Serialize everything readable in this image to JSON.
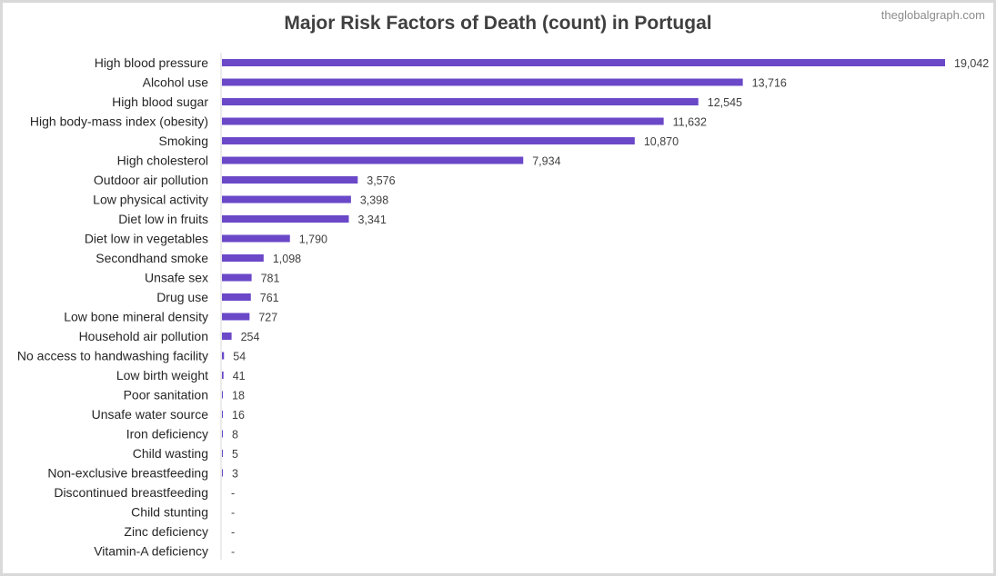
{
  "header": {
    "title": "Major Risk Factors of Death (count) in Portugal",
    "watermark": "theglobalgraph.com"
  },
  "chart_data": {
    "type": "bar",
    "orientation": "horizontal",
    "title": "Major Risk Factors of Death (count) in Portugal",
    "bar_color": "#6a48c8",
    "categories": [
      "High blood pressure",
      "Alcohol use",
      "High blood sugar",
      "High body-mass index (obesity)",
      "Smoking",
      "High cholesterol",
      "Outdoor air pollution",
      "Low physical activity",
      "Diet low in fruits",
      "Diet low in vegetables",
      "Secondhand smoke",
      "Unsafe sex",
      "Drug use",
      "Low bone mineral density",
      "Household air pollution",
      "No access to handwashing facility",
      "Low birth weight",
      "Poor sanitation",
      "Unsafe water source",
      "Iron deficiency",
      "Child wasting",
      "Non-exclusive breastfeeding",
      "Discontinued breastfeeding",
      "Child stunting",
      "Zinc deficiency",
      "Vitamin-A deficiency"
    ],
    "values": [
      19042,
      13716,
      12545,
      11632,
      10870,
      7934,
      3576,
      3398,
      3341,
      1790,
      1098,
      781,
      761,
      727,
      254,
      54,
      41,
      18,
      16,
      8,
      5,
      3,
      0,
      0,
      0,
      0
    ],
    "labels": [
      "19,042",
      "13,716",
      "12,545",
      "11,632",
      "10,870",
      "7,934",
      "3,576",
      "3,398",
      "3,341",
      "1,790",
      "1,098",
      "781",
      "761",
      "727",
      "254",
      "54",
      "41",
      "18",
      "16",
      "8",
      "5",
      "3",
      "-",
      "-",
      "-",
      "-"
    ]
  }
}
